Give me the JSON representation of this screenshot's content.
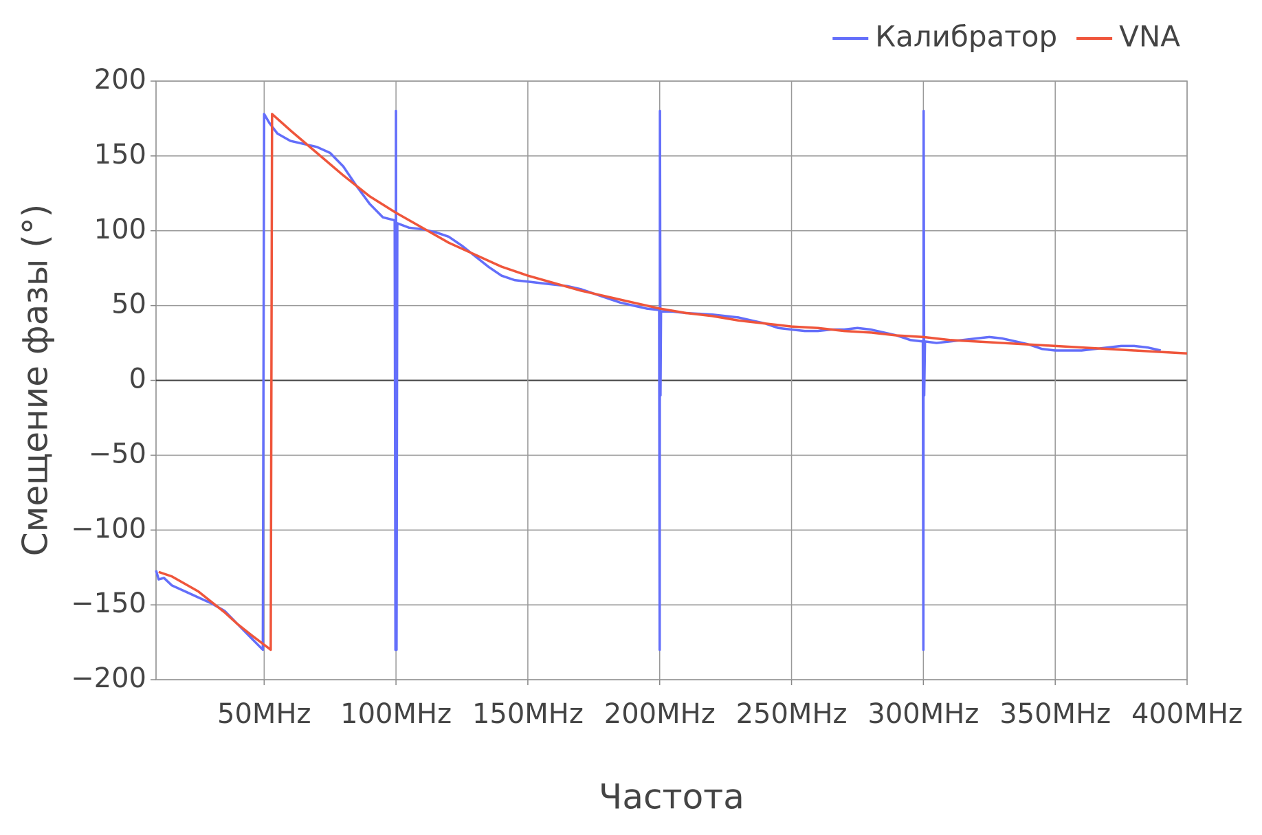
{
  "chart_data": {
    "type": "line",
    "x_label": "Частота",
    "y_label": "Смещение фазы (°)",
    "xlim": [
      9,
      400
    ],
    "ylim": [
      -200,
      200
    ],
    "xticks": [
      {
        "value": 50,
        "label": "50MHz"
      },
      {
        "value": 100,
        "label": "100MHz"
      },
      {
        "value": 150,
        "label": "150MHz"
      },
      {
        "value": 200,
        "label": "200MHz"
      },
      {
        "value": 250,
        "label": "250MHz"
      },
      {
        "value": 300,
        "label": "300MHz"
      },
      {
        "value": 350,
        "label": "350MHz"
      },
      {
        "value": 400,
        "label": "400MHz"
      }
    ],
    "yticks": [
      {
        "value": -200,
        "label": "−200"
      },
      {
        "value": -150,
        "label": "−150"
      },
      {
        "value": -100,
        "label": "−100"
      },
      {
        "value": -50,
        "label": "−50"
      },
      0,
      50,
      100,
      150,
      200
    ],
    "grid": true,
    "legend": "top-right",
    "series": [
      {
        "name": "Калибратор",
        "color": "#636efa",
        "x": [
          9,
          10,
          12,
          15,
          20,
          25,
          30,
          35,
          40,
          45,
          49.5,
          50,
          52,
          55,
          60,
          65,
          70,
          75,
          80,
          85,
          90,
          95,
          99.5,
          99.8,
          100,
          100.2,
          100.5,
          105,
          110,
          115,
          120,
          125,
          130,
          135,
          140,
          145,
          150,
          155,
          160,
          165,
          170,
          175,
          180,
          185,
          190,
          195,
          199.8,
          200,
          200.1,
          200.3,
          200.5,
          205,
          210,
          220,
          230,
          235,
          240,
          245,
          250,
          255,
          260,
          265,
          270,
          275,
          280,
          285,
          290,
          295,
          299.8,
          300,
          300.1,
          300.3,
          300.6,
          305,
          310,
          315,
          320,
          325,
          330,
          335,
          340,
          345,
          350,
          355,
          360,
          365,
          370,
          375,
          380,
          385,
          390
        ],
        "values": [
          -127,
          -133,
          -132,
          -137,
          -141,
          -145,
          -149,
          -154,
          -163,
          -172,
          -180,
          178,
          172,
          165,
          160,
          158,
          156,
          152,
          143,
          130,
          118,
          109,
          107,
          -180,
          180,
          -180,
          105,
          102,
          101,
          99,
          96,
          90,
          83,
          76,
          70,
          67,
          66,
          65,
          64,
          63,
          61,
          58,
          55,
          52,
          50,
          48,
          47,
          -180,
          180,
          -10,
          46,
          46,
          45,
          44,
          42,
          40,
          38,
          35,
          34,
          33,
          33,
          34,
          34,
          35,
          34,
          32,
          30,
          27,
          26,
          -180,
          180,
          -10,
          26,
          25,
          26,
          27,
          28,
          29,
          28,
          26,
          24,
          21,
          20,
          20,
          20,
          21,
          22,
          23,
          23,
          22,
          20
        ]
      },
      {
        "name": "VNA",
        "color": "#ef553b",
        "x": [
          10,
          15,
          20,
          25,
          30,
          35,
          40,
          45,
          52.5,
          53,
          60,
          70,
          80,
          90,
          100,
          110,
          120,
          130,
          140,
          150,
          160,
          170,
          180,
          190,
          200,
          210,
          220,
          230,
          240,
          250,
          260,
          270,
          280,
          290,
          300,
          310,
          320,
          330,
          340,
          350,
          360,
          370,
          380,
          390,
          400
        ],
        "values": [
          -128,
          -131,
          -136,
          -141,
          -148,
          -155,
          -163,
          -170,
          -180,
          178,
          167,
          152,
          137,
          123,
          112,
          102,
          92,
          84,
          76,
          70,
          65,
          60,
          56,
          52,
          48,
          45,
          43,
          40,
          38,
          36,
          35,
          33,
          32,
          30,
          29,
          27,
          26,
          25,
          24,
          23,
          22,
          21,
          20,
          19,
          18
        ]
      }
    ]
  }
}
